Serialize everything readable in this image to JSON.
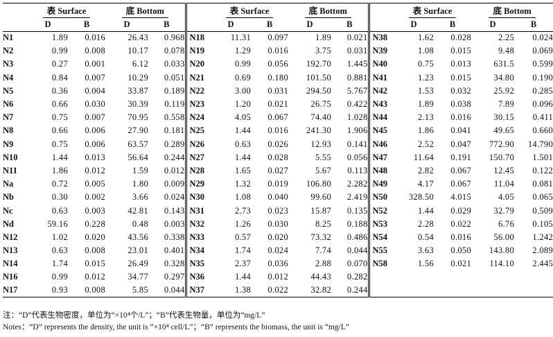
{
  "header": {
    "surface": "表 Surface",
    "bottom": "底 Bottom",
    "D": "D",
    "B": "B"
  },
  "panels": [
    {
      "rows": [
        [
          "N1",
          "1.89",
          "0.016",
          "26.43",
          "0.968"
        ],
        [
          "N2",
          "0.99",
          "0.008",
          "10.17",
          "0.078"
        ],
        [
          "N3",
          "0.27",
          "0.001",
          "6.12",
          "0.033"
        ],
        [
          "N4",
          "0.84",
          "0.007",
          "10.29",
          "0.051"
        ],
        [
          "N5",
          "0.36",
          "0.004",
          "33.87",
          "0.189"
        ],
        [
          "N6",
          "0.66",
          "0.030",
          "30.39",
          "0.119"
        ],
        [
          "N7",
          "0.75",
          "0.007",
          "70.95",
          "0.558"
        ],
        [
          "N8",
          "0.66",
          "0.006",
          "27.90",
          "0.181"
        ],
        [
          "N9",
          "0.75",
          "0.006",
          "63.57",
          "0.289"
        ],
        [
          "N10",
          "1.44",
          "0.013",
          "56.64",
          "0.244"
        ],
        [
          "N11",
          "1.86",
          "0.012",
          "1.59",
          "0.012"
        ],
        [
          "Na",
          "0.72",
          "0.005",
          "1.80",
          "0.009"
        ],
        [
          "Nb",
          "0.30",
          "0.002",
          "3.66",
          "0.024"
        ],
        [
          "Nc",
          "0.63",
          "0.003",
          "42.81",
          "0.143"
        ],
        [
          "Nd",
          "59.16",
          "0.228",
          "0.48",
          "0.003"
        ],
        [
          "N12",
          "1.02",
          "0.020",
          "43.56",
          "0.338"
        ],
        [
          "N13",
          "0.63",
          "0.008",
          "23.01",
          "0.401"
        ],
        [
          "N14",
          "1.74",
          "0.015",
          "26.49",
          "0.328"
        ],
        [
          "N16",
          "0.99",
          "0.012",
          "34.77",
          "0.297"
        ],
        [
          "N17",
          "0.93",
          "0.008",
          "5.85",
          "0.044"
        ]
      ]
    },
    {
      "rows": [
        [
          "N18",
          "11.31",
          "0.097",
          "1.89",
          "0.021"
        ],
        [
          "N19",
          "1.29",
          "0.016",
          "3.75",
          "0.031"
        ],
        [
          "N20",
          "0.99",
          "0.056",
          "192.70",
          "1.445"
        ],
        [
          "N21",
          "0.69",
          "0.180",
          "101.50",
          "0.881"
        ],
        [
          "N22",
          "3.00",
          "0.031",
          "294.50",
          "5.767"
        ],
        [
          "N23",
          "1.20",
          "0.021",
          "26.75",
          "0.422"
        ],
        [
          "N24",
          "4.05",
          "0.067",
          "74.40",
          "1.028"
        ],
        [
          "N25",
          "1.44",
          "0.016",
          "241.30",
          "1.906"
        ],
        [
          "N26",
          "0.63",
          "0.026",
          "12.93",
          "0.141"
        ],
        [
          "N27",
          "1.44",
          "0.028",
          "5.55",
          "0.056"
        ],
        [
          "N28",
          "1.65",
          "0.027",
          "5.67",
          "0.113"
        ],
        [
          "N29",
          "1.32",
          "0.019",
          "106.80",
          "2.282"
        ],
        [
          "N30",
          "1.08",
          "0.040",
          "99.60",
          "2.419"
        ],
        [
          "N31",
          "2.73",
          "0.023",
          "15.87",
          "0.135"
        ],
        [
          "N32",
          "1.26",
          "0.030",
          "8.25",
          "0.188"
        ],
        [
          "N33",
          "0.57",
          "0.020",
          "73.32",
          "0.486"
        ],
        [
          "N34",
          "1.74",
          "0.024",
          "7.74",
          "0.044"
        ],
        [
          "N35",
          "2.37",
          "0.036",
          "2.88",
          "0.070"
        ],
        [
          "N36",
          "1.44",
          "0.012",
          "44.43",
          "0.282"
        ],
        [
          "N37",
          "1.38",
          "0.022",
          "32.82",
          "0.244"
        ]
      ]
    },
    {
      "rows": [
        [
          "N38",
          "1.62",
          "0.028",
          "2.25",
          "0.024"
        ],
        [
          "N39",
          "1.08",
          "0.015",
          "9.48",
          "0.069"
        ],
        [
          "N40",
          "0.75",
          "0.013",
          "631.5",
          "0.599"
        ],
        [
          "N41",
          "1.23",
          "0.015",
          "34.80",
          "0.190"
        ],
        [
          "N42",
          "1.53",
          "0.032",
          "25.92",
          "0.285"
        ],
        [
          "N43",
          "1.89",
          "0.038",
          "7.89",
          "0.096"
        ],
        [
          "N44",
          "2.13",
          "0.016",
          "30.15",
          "0.411"
        ],
        [
          "N45",
          "1.86",
          "0.041",
          "49.65",
          "0.660"
        ],
        [
          "N46",
          "2.52",
          "0.047",
          "772.90",
          "14.790"
        ],
        [
          "N47",
          "11.64",
          "0.191",
          "150.70",
          "1.501"
        ],
        [
          "N48",
          "2.82",
          "0.067",
          "12.45",
          "0.122"
        ],
        [
          "N49",
          "4.17",
          "0.067",
          "11.04",
          "0.081"
        ],
        [
          "N50",
          "328.50",
          "4.015",
          "4.05",
          "0.065"
        ],
        [
          "N52",
          "1.44",
          "0.029",
          "32.79",
          "0.509"
        ],
        [
          "N53",
          "2.28",
          "0.022",
          "6.76",
          "0.105"
        ],
        [
          "N54",
          "0.54",
          "0.016",
          "56.00",
          "1.242"
        ],
        [
          "N55",
          "3.63",
          "0.050",
          "143.80",
          "2.089"
        ],
        [
          "N58",
          "1.56",
          "0.021",
          "114.10",
          "2.445"
        ],
        [
          "",
          "",
          "",
          "",
          ""
        ],
        [
          "",
          "",
          "",
          "",
          ""
        ]
      ]
    }
  ],
  "notes": {
    "chinese": "注：“D”代表生物密度，单位为“×10⁴个/L”；“B”代表生物量，单位为“mg/L”",
    "english": "Notes：“D” represents the density, the unit is “×10⁴ cell/L”；“B” represents the biomass, the unit is “mg/L”"
  }
}
